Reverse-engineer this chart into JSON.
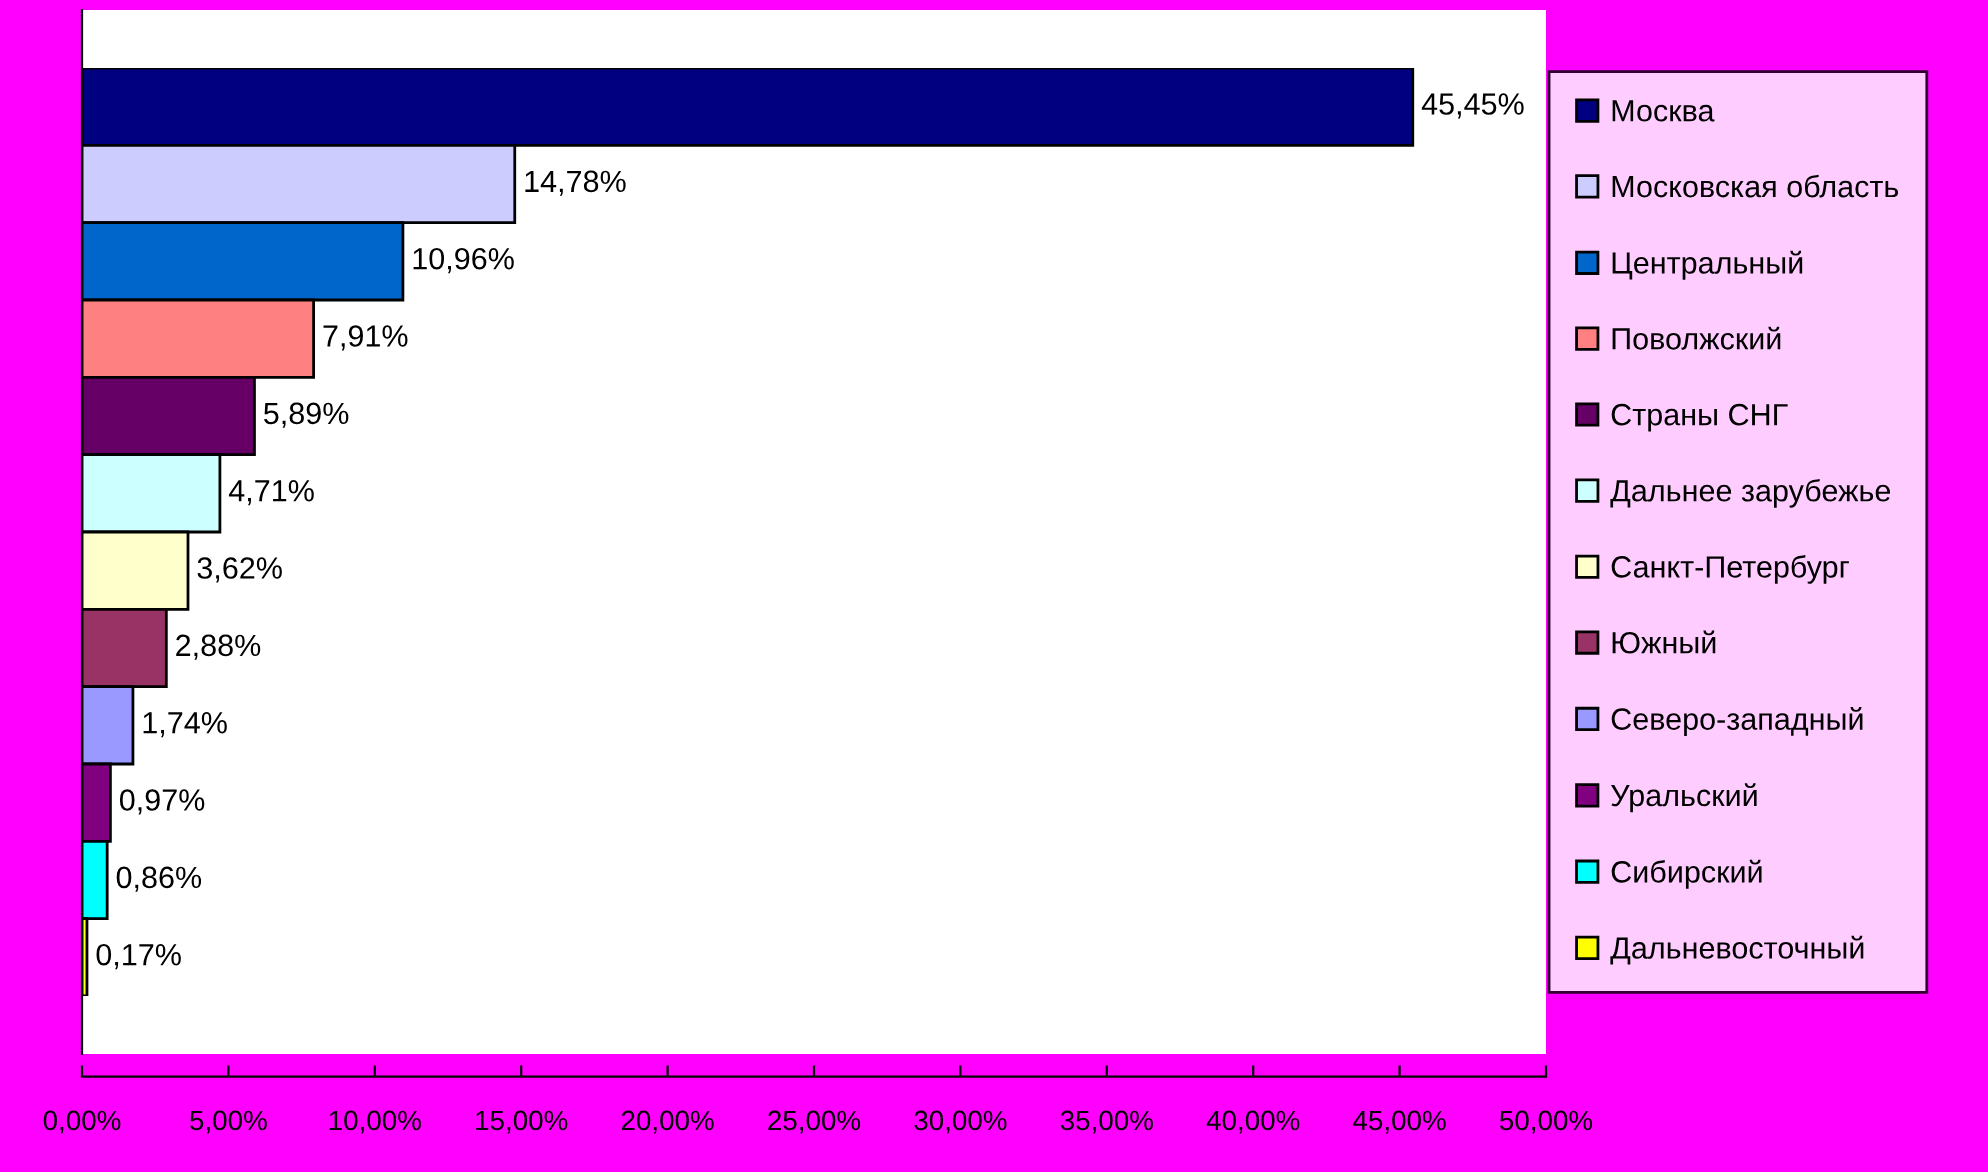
{
  "chart_data": {
    "type": "bar",
    "orientation": "horizontal",
    "categories": [
      null,
      null,
      null,
      null,
      null,
      null,
      null,
      null,
      null,
      null,
      null,
      null
    ],
    "series": [
      {
        "name": "Москва",
        "color": "#000080",
        "values": [
          45.45,
          null,
          null,
          null,
          null,
          null,
          null,
          null,
          null,
          null,
          null,
          null
        ],
        "value_labels": [
          "45,45%",
          null,
          null,
          null,
          null,
          null,
          null,
          null,
          null,
          null,
          null,
          null
        ]
      },
      {
        "name": "Московская область",
        "color": "#ccccff",
        "values": [
          null,
          14.78,
          null,
          null,
          null,
          null,
          null,
          null,
          null,
          null,
          null,
          null
        ],
        "value_labels": [
          null,
          "14,78%",
          null,
          null,
          null,
          null,
          null,
          null,
          null,
          null,
          null,
          null
        ]
      },
      {
        "name": "Центральный",
        "color": "#0066cc",
        "values": [
          null,
          null,
          10.96,
          null,
          null,
          null,
          null,
          null,
          null,
          null,
          null,
          null
        ],
        "value_labels": [
          null,
          null,
          "10,96%",
          null,
          null,
          null,
          null,
          null,
          null,
          null,
          null,
          null
        ]
      },
      {
        "name": "Поволжский",
        "color": "#ff8080",
        "values": [
          null,
          null,
          null,
          7.91,
          null,
          null,
          null,
          null,
          null,
          null,
          null,
          null
        ],
        "value_labels": [
          null,
          null,
          null,
          "7,91%",
          null,
          null,
          null,
          null,
          null,
          null,
          null,
          null
        ]
      },
      {
        "name": "Страны СНГ",
        "color": "#660066",
        "values": [
          null,
          null,
          null,
          null,
          5.89,
          null,
          null,
          null,
          null,
          null,
          null,
          null
        ],
        "value_labels": [
          null,
          null,
          null,
          null,
          "5,89%",
          null,
          null,
          null,
          null,
          null,
          null,
          null
        ]
      },
      {
        "name": "Дальнее зарубежье",
        "color": "#ccffff",
        "values": [
          null,
          null,
          null,
          null,
          null,
          4.71,
          null,
          null,
          null,
          null,
          null,
          null
        ],
        "value_labels": [
          null,
          null,
          null,
          null,
          null,
          "4,71%",
          null,
          null,
          null,
          null,
          null,
          null
        ]
      },
      {
        "name": "Санкт-Петербург",
        "color": "#ffffcc",
        "values": [
          null,
          null,
          null,
          null,
          null,
          null,
          3.62,
          null,
          null,
          null,
          null,
          null
        ],
        "value_labels": [
          null,
          null,
          null,
          null,
          null,
          null,
          "3,62%",
          null,
          null,
          null,
          null,
          null
        ]
      },
      {
        "name": "Южный",
        "color": "#993366",
        "values": [
          null,
          null,
          null,
          null,
          null,
          null,
          null,
          2.88,
          null,
          null,
          null,
          null
        ],
        "value_labels": [
          null,
          null,
          null,
          null,
          null,
          null,
          null,
          "2,88%",
          null,
          null,
          null,
          null
        ]
      },
      {
        "name": "Северо-западный",
        "color": "#9999ff",
        "values": [
          null,
          null,
          null,
          null,
          null,
          null,
          null,
          null,
          1.74,
          null,
          null,
          null
        ],
        "value_labels": [
          null,
          null,
          null,
          null,
          null,
          null,
          null,
          null,
          "1,74%",
          null,
          null,
          null
        ]
      },
      {
        "name": "Уральский",
        "color": "#800080",
        "values": [
          null,
          null,
          null,
          null,
          null,
          null,
          null,
          null,
          null,
          0.97,
          null,
          null
        ],
        "value_labels": [
          null,
          null,
          null,
          null,
          null,
          null,
          null,
          null,
          null,
          "0,97%",
          null,
          null
        ]
      },
      {
        "name": "Сибирский",
        "color": "#00ffff",
        "values": [
          null,
          null,
          null,
          null,
          null,
          null,
          null,
          null,
          null,
          null,
          0.86,
          null
        ],
        "value_labels": [
          null,
          null,
          null,
          null,
          null,
          null,
          null,
          null,
          null,
          null,
          "0,86%",
          null
        ]
      },
      {
        "name": "Дальневосточный",
        "color": "#ffff00",
        "values": [
          null,
          null,
          null,
          null,
          null,
          null,
          null,
          null,
          null,
          null,
          null,
          0.17
        ],
        "value_labels": [
          null,
          null,
          null,
          null,
          null,
          null,
          null,
          null,
          null,
          null,
          null,
          "0,17%"
        ]
      }
    ],
    "xlim": [
      0,
      50
    ],
    "xticks": [
      {
        "value": 0,
        "label": "0,00%"
      },
      {
        "value": 5,
        "label": "5,00%"
      },
      {
        "value": 10,
        "label": "10,00%"
      },
      {
        "value": 15,
        "label": "15,00%"
      },
      {
        "value": 20,
        "label": "20,00%"
      },
      {
        "value": 25,
        "label": "25,00%"
      },
      {
        "value": 30,
        "label": "30,00%"
      },
      {
        "value": 35,
        "label": "35,00%"
      },
      {
        "value": 40,
        "label": "40,00%"
      },
      {
        "value": 45,
        "label": "45,00%"
      },
      {
        "value": 50,
        "label": "50,00%"
      }
    ],
    "stacked": true,
    "tick_labels": "x",
    "legend": "right",
    "grid": false
  }
}
